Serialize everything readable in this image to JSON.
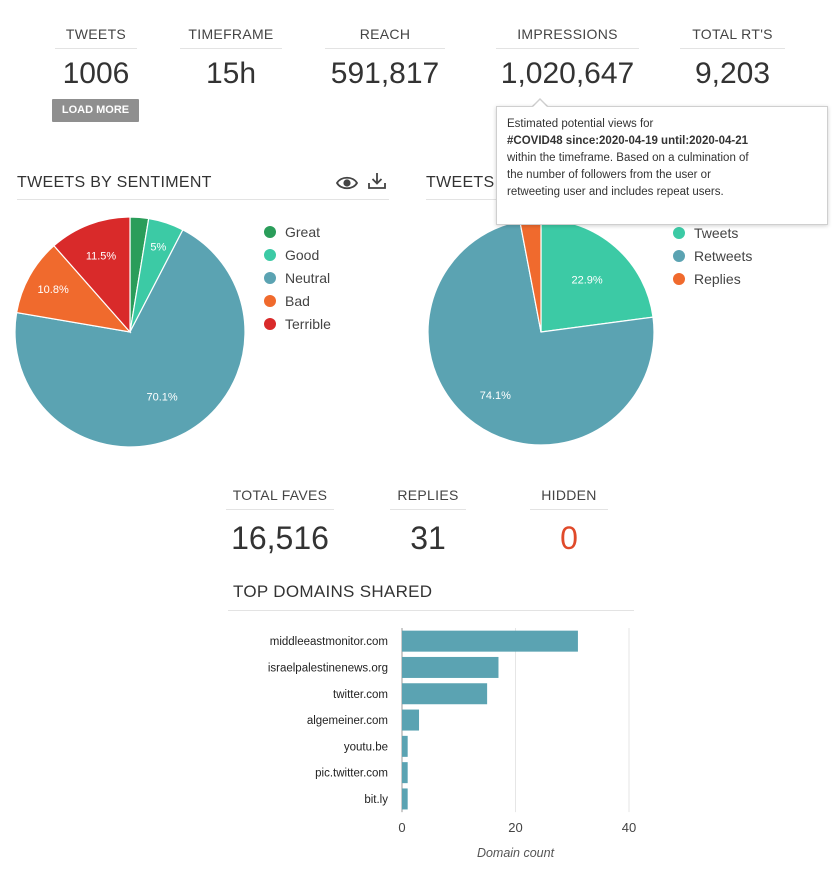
{
  "stats": [
    {
      "label": "TWEETS",
      "value": "1006"
    },
    {
      "label": "TIMEFRAME",
      "value": "15h"
    },
    {
      "label": "REACH",
      "value": "591,817"
    },
    {
      "label": "IMPRESSIONS",
      "value": "1,020,647"
    },
    {
      "label": "TOTAL RT'S",
      "value": "9,203"
    }
  ],
  "load_more_label": "LOAD MORE",
  "tooltip": {
    "line1": "Estimated potential views for",
    "query": "#COVID48 since:2020-04-19 until:2020-04-21",
    "line3": "within the timeframe. Based on a culmination of",
    "line4": "the number of followers from the user or",
    "line5": "retweeting user and includes repeat users."
  },
  "sentiment": {
    "title": "TWEETS BY SENTIMENT",
    "icons": [
      "eye-icon",
      "download-icon"
    ]
  },
  "type_section": {
    "title": "TWEETS"
  },
  "stats2": [
    {
      "label": "TOTAL FAVES",
      "value": "16,516"
    },
    {
      "label": "REPLIES",
      "value": "31"
    },
    {
      "label": "HIDDEN",
      "value": "0"
    }
  ],
  "domains_title": "TOP DOMAINS SHARED",
  "colors": {
    "great": "#2a9d5a",
    "good": "#3ccaa5",
    "neutral": "#5ba3b2",
    "bad": "#f06a2d",
    "terrible": "#d92a2a",
    "tweets": "#3ccaa5",
    "retweets": "#5ba3b2",
    "replies": "#f06a2d",
    "bar": "#5ba3b2",
    "hidden_value": "#e04a2a"
  },
  "chart_data": [
    {
      "type": "pie",
      "categories": [
        "Great",
        "Good",
        "Neutral",
        "Bad",
        "Terrible"
      ],
      "values": [
        2.6,
        5,
        70.1,
        10.8,
        11.5
      ],
      "labels": [
        "",
        "5%",
        "70.1%",
        "10.8%",
        "11.5%"
      ],
      "title": "TWEETS BY SENTIMENT",
      "legend": "right"
    },
    {
      "type": "pie",
      "categories": [
        "Tweets",
        "Retweets",
        "Replies"
      ],
      "values": [
        22.9,
        74.1,
        3.0
      ],
      "labels": [
        "22.9%",
        "74.1%",
        ""
      ],
      "title": "TWEETS",
      "legend": "right"
    },
    {
      "type": "bar",
      "orientation": "horizontal",
      "title": "TOP DOMAINS SHARED",
      "categories": [
        "middleeastmonitor.com",
        "israelpalestinenews.org",
        "twitter.com",
        "algemeiner.com",
        "youtu.be",
        "pic.twitter.com",
        "bit.ly"
      ],
      "values": [
        31,
        17,
        15,
        3,
        1,
        1,
        1
      ],
      "xlabel": "Domain count",
      "xlim": [
        0,
        40
      ],
      "xticks": [
        0,
        20,
        40
      ],
      "grid": true
    }
  ]
}
